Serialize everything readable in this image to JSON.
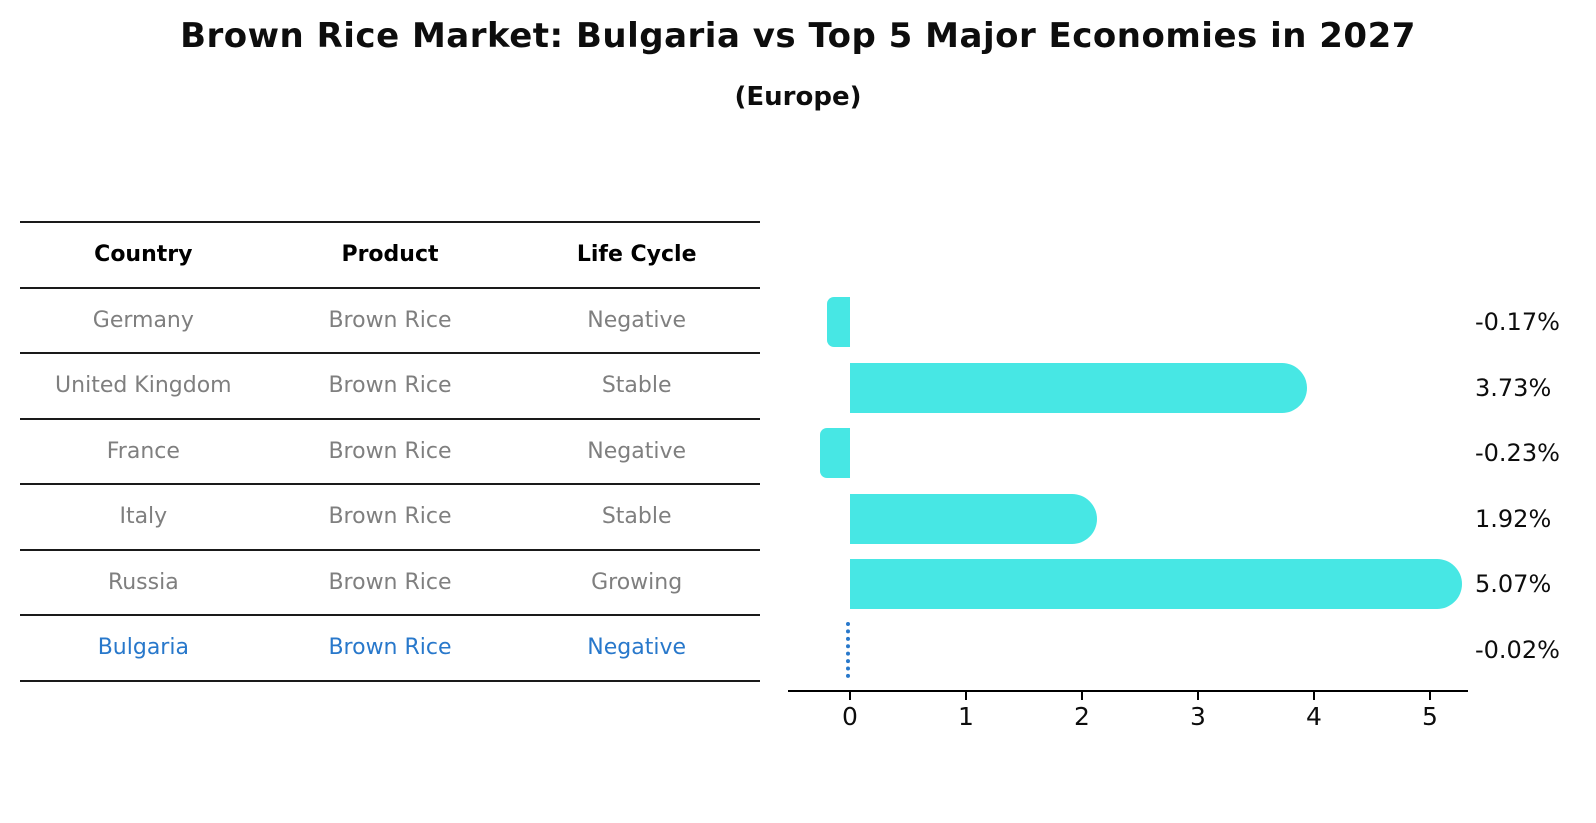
{
  "title": "Brown Rice Market: Bulgaria vs Top 5 Major Economies in 2027",
  "subtitle": "(Europe)",
  "colors": {
    "bar": "#47e7e4",
    "highlight_blue": "#2878cb",
    "table_text_gray": "#7f7f7f",
    "text_black": "#0d0d0d"
  },
  "table": {
    "headers": [
      "Country",
      "Product",
      "Life Cycle"
    ],
    "rows": [
      {
        "country": "Germany",
        "product": "Brown Rice",
        "life_cycle": "Negative",
        "highlight": false
      },
      {
        "country": "United Kingdom",
        "product": "Brown Rice",
        "life_cycle": "Stable",
        "highlight": false
      },
      {
        "country": "France",
        "product": "Brown Rice",
        "life_cycle": "Negative",
        "highlight": false
      },
      {
        "country": "Italy",
        "product": "Brown Rice",
        "life_cycle": "Stable",
        "highlight": false
      },
      {
        "country": "Russia",
        "product": "Brown Rice",
        "life_cycle": "Growing",
        "highlight": false
      },
      {
        "country": "Bulgaria",
        "product": "Brown Rice",
        "life_cycle": "Negative",
        "highlight": true
      }
    ]
  },
  "chart_data": {
    "type": "bar",
    "orientation": "horizontal",
    "title": "Brown Rice Market: Bulgaria vs Top 5 Major Economies in 2027 (Europe)",
    "categories": [
      "Germany",
      "United Kingdom",
      "France",
      "Italy",
      "Russia",
      "Bulgaria"
    ],
    "values": [
      -0.17,
      3.73,
      -0.23,
      1.92,
      5.07,
      -0.02
    ],
    "value_labels": [
      "-0.17%",
      "3.73%",
      "-0.23%",
      "1.92%",
      "5.07%",
      "-0.02%"
    ],
    "bar_styles": [
      "bar",
      "bar",
      "bar",
      "bar",
      "bar",
      "dotted-marker"
    ],
    "xticks": [
      0,
      1,
      2,
      3,
      4,
      5
    ],
    "xlim": [
      -0.55,
      5.35
    ],
    "xlabel": "",
    "ylabel": "",
    "grid": false,
    "legend": "none",
    "bar_color": "#47e7e4",
    "marker_color": "#2878cb"
  }
}
